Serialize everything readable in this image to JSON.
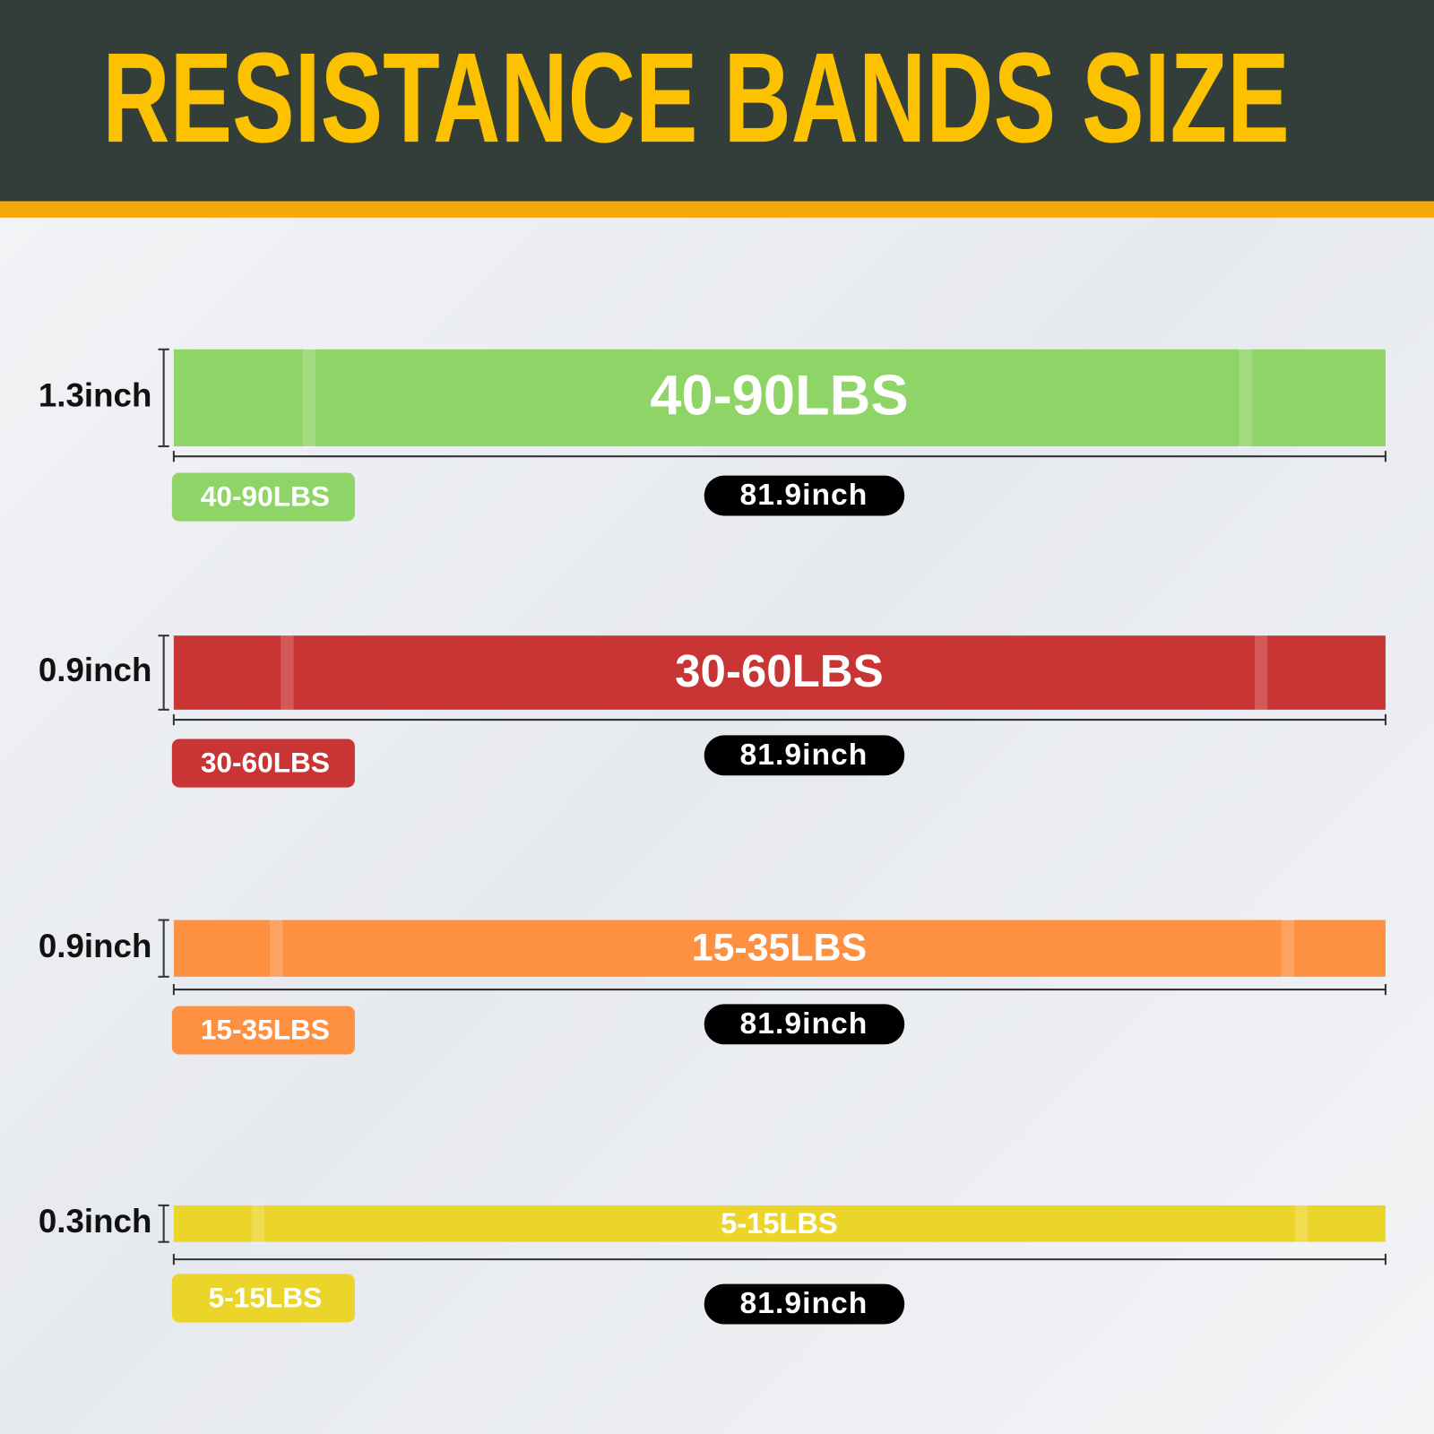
{
  "header": {
    "title": "RESISTANCE BANDS SIZE"
  },
  "bands": [
    {
      "width": "1.3inch",
      "load": "40-90LBS",
      "length": "81.9inch",
      "color": "#8ed466"
    },
    {
      "width": "0.9inch",
      "load": "30-60LBS",
      "length": "81.9inch",
      "color": "#c93534"
    },
    {
      "width": "0.9inch",
      "load": "15-35LBS",
      "length": "81.9inch",
      "color": "#fd9141"
    },
    {
      "width": "0.3inch",
      "load": "5-15LBS",
      "length": "81.9inch",
      "color": "#ecd52b"
    }
  ]
}
